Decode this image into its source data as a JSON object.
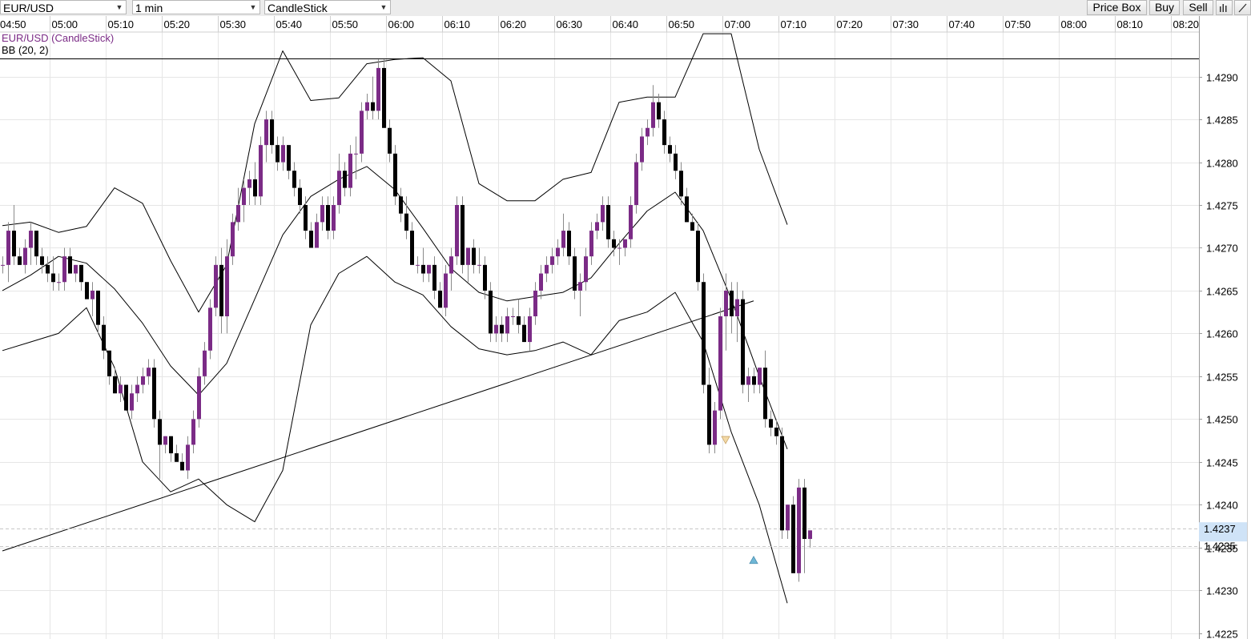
{
  "toolbar": {
    "symbol": "EUR/USD",
    "timeframe": "1 min",
    "chart_type": "CandleStick",
    "price_box_label": "Price Box",
    "buy_label": "Buy",
    "sell_label": "Sell"
  },
  "chart_data": {
    "type": "candlestick",
    "legend": [
      "EUR/USD (CandleStick)",
      "BB (20, 2)"
    ],
    "x_tick_labels": [
      "04:50",
      "05:00",
      "05:10",
      "05:20",
      "05:30",
      "05:40",
      "05:50",
      "06:00",
      "06:10",
      "06:20",
      "06:30",
      "06:40",
      "06:50",
      "07:00",
      "07:10",
      "07:20",
      "07:30",
      "07:40",
      "07:50",
      "08:00",
      "08:10",
      "08:20"
    ],
    "y_tick_labels": [
      "1.4290",
      "1.4285",
      "1.4280",
      "1.4275",
      "1.4270",
      "1.4265",
      "1.4260",
      "1.4255",
      "1.4250",
      "1.4245",
      "1.4240",
      "1.4235",
      "1.4230",
      "1.4225"
    ],
    "y_ticks": [
      1.429,
      1.4285,
      1.428,
      1.4275,
      1.427,
      1.4265,
      1.426,
      1.4255,
      1.425,
      1.4245,
      1.424,
      1.4235,
      1.423,
      1.4225
    ],
    "x_range": [
      "04:50",
      "08:21"
    ],
    "y_range": [
      1.42245,
      1.42952
    ],
    "grid": true,
    "price_labels": [
      "1.4237",
      "1.4235"
    ],
    "price_label_values": [
      1.42372,
      1.42352
    ],
    "horizontal_line": 1.42921,
    "trendline": [
      {
        "time": "04:50",
        "price": 1.42346
      },
      {
        "time": "07:04",
        "price": 1.42638
      }
    ],
    "candle_interval": "1 min",
    "start_time": "04:50",
    "up_color": "#7b2b86",
    "down_color": "#000000",
    "candles": [
      [
        1.4268,
        1.4269,
        1.4267,
        1.4268
      ],
      [
        1.4268,
        1.4273,
        1.4266,
        1.4272
      ],
      [
        1.4272,
        1.4275,
        1.4268,
        1.4269
      ],
      [
        1.4269,
        1.427,
        1.4268,
        1.4268
      ],
      [
        1.4268,
        1.4271,
        1.4267,
        1.427
      ],
      [
        1.427,
        1.4273,
        1.4268,
        1.4272
      ],
      [
        1.4272,
        1.4272,
        1.4268,
        1.4269
      ],
      [
        1.4269,
        1.427,
        1.4267,
        1.4268
      ],
      [
        1.4268,
        1.4269,
        1.4266,
        1.4267
      ],
      [
        1.4267,
        1.4269,
        1.4265,
        1.4266
      ],
      [
        1.4266,
        1.4267,
        1.4265,
        1.4266
      ],
      [
        1.4266,
        1.427,
        1.4265,
        1.4269
      ],
      [
        1.4269,
        1.427,
        1.4267,
        1.4267
      ],
      [
        1.4267,
        1.4268,
        1.4266,
        1.4268
      ],
      [
        1.4268,
        1.4268,
        1.4265,
        1.4266
      ],
      [
        1.4266,
        1.4266,
        1.4264,
        1.4264
      ],
      [
        1.4264,
        1.4266,
        1.4262,
        1.4265
      ],
      [
        1.4265,
        1.4265,
        1.426,
        1.4261
      ],
      [
        1.4261,
        1.4262,
        1.4257,
        1.4258
      ],
      [
        1.4258,
        1.4258,
        1.4254,
        1.4255
      ],
      [
        1.4255,
        1.4256,
        1.4253,
        1.4253
      ],
      [
        1.4253,
        1.4255,
        1.4252,
        1.4254
      ],
      [
        1.4254,
        1.4254,
        1.4251,
        1.4251
      ],
      [
        1.4251,
        1.4254,
        1.425,
        1.4253
      ],
      [
        1.4253,
        1.4255,
        1.4252,
        1.4254
      ],
      [
        1.4254,
        1.4256,
        1.4253,
        1.4255
      ],
      [
        1.4255,
        1.4257,
        1.4254,
        1.4256
      ],
      [
        1.4256,
        1.4257,
        1.4249,
        1.425
      ],
      [
        1.425,
        1.4251,
        1.4243,
        1.4247
      ],
      [
        1.4247,
        1.4248,
        1.4246,
        1.4248
      ],
      [
        1.4248,
        1.4248,
        1.4245,
        1.4246
      ],
      [
        1.4246,
        1.4247,
        1.4245,
        1.4245
      ],
      [
        1.4245,
        1.4246,
        1.4244,
        1.4244
      ],
      [
        1.4244,
        1.4248,
        1.4243,
        1.4247
      ],
      [
        1.4247,
        1.4251,
        1.4246,
        1.425
      ],
      [
        1.425,
        1.4256,
        1.4249,
        1.4255
      ],
      [
        1.4255,
        1.4259,
        1.4254,
        1.4258
      ],
      [
        1.4258,
        1.4264,
        1.4257,
        1.4263
      ],
      [
        1.4263,
        1.4269,
        1.4262,
        1.4268
      ],
      [
        1.4268,
        1.427,
        1.426,
        1.4262
      ],
      [
        1.4262,
        1.4271,
        1.426,
        1.4269
      ],
      [
        1.4269,
        1.4274,
        1.4268,
        1.4273
      ],
      [
        1.4273,
        1.4277,
        1.4272,
        1.4275
      ],
      [
        1.4275,
        1.4278,
        1.4273,
        1.4277
      ],
      [
        1.4277,
        1.4279,
        1.4275,
        1.4278
      ],
      [
        1.4278,
        1.428,
        1.4275,
        1.4276
      ],
      [
        1.4276,
        1.4283,
        1.4275,
        1.4282
      ],
      [
        1.4282,
        1.4286,
        1.428,
        1.4285
      ],
      [
        1.4285,
        1.4286,
        1.4281,
        1.4282
      ],
      [
        1.4282,
        1.4283,
        1.4279,
        1.428
      ],
      [
        1.428,
        1.4283,
        1.4279,
        1.4282
      ],
      [
        1.4282,
        1.4282,
        1.4278,
        1.4279
      ],
      [
        1.4279,
        1.428,
        1.4276,
        1.4277
      ],
      [
        1.4277,
        1.4278,
        1.4274,
        1.4275
      ],
      [
        1.4275,
        1.4276,
        1.4271,
        1.4272
      ],
      [
        1.4272,
        1.4273,
        1.427,
        1.427
      ],
      [
        1.427,
        1.4274,
        1.427,
        1.4273
      ],
      [
        1.4273,
        1.4276,
        1.4272,
        1.4275
      ],
      [
        1.4275,
        1.4276,
        1.4271,
        1.4272
      ],
      [
        1.4272,
        1.4276,
        1.4271,
        1.4275
      ],
      [
        1.4275,
        1.4281,
        1.4274,
        1.4279
      ],
      [
        1.4279,
        1.428,
        1.4276,
        1.4277
      ],
      [
        1.4277,
        1.4282,
        1.4276,
        1.4281
      ],
      [
        1.4281,
        1.4283,
        1.4278,
        1.4281
      ],
      [
        1.4281,
        1.4287,
        1.428,
        1.4286
      ],
      [
        1.4286,
        1.4288,
        1.4285,
        1.4287
      ],
      [
        1.4287,
        1.429,
        1.4285,
        1.4286
      ],
      [
        1.4286,
        1.4292,
        1.4285,
        1.4291
      ],
      [
        1.4291,
        1.4292,
        1.4284,
        1.4284
      ],
      [
        1.4284,
        1.4285,
        1.428,
        1.4281
      ],
      [
        1.4281,
        1.4282,
        1.4275,
        1.4276
      ],
      [
        1.4276,
        1.4277,
        1.4273,
        1.4274
      ],
      [
        1.4274,
        1.4276,
        1.4271,
        1.4272
      ],
      [
        1.4272,
        1.4273,
        1.4268,
        1.4268
      ],
      [
        1.4268,
        1.4269,
        1.4267,
        1.4268
      ],
      [
        1.4268,
        1.427,
        1.4266,
        1.4267
      ],
      [
        1.4267,
        1.4268,
        1.4266,
        1.4268
      ],
      [
        1.4268,
        1.4269,
        1.4264,
        1.4265
      ],
      [
        1.4265,
        1.4266,
        1.4263,
        1.4263
      ],
      [
        1.4263,
        1.4268,
        1.4262,
        1.4267
      ],
      [
        1.4267,
        1.427,
        1.4265,
        1.4269
      ],
      [
        1.4269,
        1.4276,
        1.4268,
        1.4275
      ],
      [
        1.4275,
        1.4276,
        1.4267,
        1.4268
      ],
      [
        1.4268,
        1.427,
        1.4266,
        1.427
      ],
      [
        1.427,
        1.4271,
        1.4267,
        1.4268
      ],
      [
        1.4268,
        1.427,
        1.4267,
        1.4268
      ],
      [
        1.4268,
        1.4269,
        1.4264,
        1.4265
      ],
      [
        1.4265,
        1.4266,
        1.4259,
        1.426
      ],
      [
        1.426,
        1.4262,
        1.4259,
        1.4261
      ],
      [
        1.4261,
        1.4262,
        1.4259,
        1.426
      ],
      [
        1.426,
        1.4263,
        1.4259,
        1.4262
      ],
      [
        1.4262,
        1.4263,
        1.4261,
        1.4262
      ],
      [
        1.4262,
        1.4264,
        1.426,
        1.4261
      ],
      [
        1.4261,
        1.4262,
        1.4259,
        1.4259
      ],
      [
        1.4259,
        1.4263,
        1.4258,
        1.4262
      ],
      [
        1.4262,
        1.4266,
        1.4261,
        1.4265
      ],
      [
        1.4265,
        1.4268,
        1.4264,
        1.4267
      ],
      [
        1.4267,
        1.4269,
        1.4266,
        1.4268
      ],
      [
        1.4268,
        1.427,
        1.4267,
        1.4269
      ],
      [
        1.4269,
        1.4271,
        1.4268,
        1.427
      ],
      [
        1.427,
        1.4274,
        1.4269,
        1.4272
      ],
      [
        1.4272,
        1.4273,
        1.4268,
        1.4269
      ],
      [
        1.4269,
        1.427,
        1.4264,
        1.4265
      ],
      [
        1.4265,
        1.4267,
        1.4262,
        1.4266
      ],
      [
        1.4266,
        1.427,
        1.4265,
        1.4269
      ],
      [
        1.4269,
        1.4273,
        1.4268,
        1.4272
      ],
      [
        1.4272,
        1.4274,
        1.4271,
        1.4273
      ],
      [
        1.4273,
        1.4276,
        1.4272,
        1.4275
      ],
      [
        1.4275,
        1.4276,
        1.427,
        1.4271
      ],
      [
        1.4271,
        1.4272,
        1.4269,
        1.427
      ],
      [
        1.427,
        1.4271,
        1.4268,
        1.427
      ],
      [
        1.427,
        1.4271,
        1.4269,
        1.4271
      ],
      [
        1.4271,
        1.4276,
        1.427,
        1.4275
      ],
      [
        1.4275,
        1.4281,
        1.4274,
        1.428
      ],
      [
        1.428,
        1.4284,
        1.4279,
        1.4283
      ],
      [
        1.4283,
        1.4285,
        1.4282,
        1.4284
      ],
      [
        1.4284,
        1.4289,
        1.4283,
        1.4287
      ],
      [
        1.4287,
        1.4288,
        1.4284,
        1.4285
      ],
      [
        1.4285,
        1.4286,
        1.4281,
        1.4282
      ],
      [
        1.4282,
        1.4283,
        1.428,
        1.4281
      ],
      [
        1.4281,
        1.4282,
        1.4278,
        1.4279
      ],
      [
        1.4279,
        1.428,
        1.4275,
        1.4276
      ],
      [
        1.4276,
        1.4277,
        1.4273,
        1.4273
      ],
      [
        1.4273,
        1.4274,
        1.4272,
        1.4272
      ],
      [
        1.4272,
        1.4273,
        1.4265,
        1.4266
      ],
      [
        1.4266,
        1.4267,
        1.4253,
        1.4254
      ],
      [
        1.4254,
        1.4256,
        1.4246,
        1.4247
      ],
      [
        1.4247,
        1.4252,
        1.4246,
        1.4251
      ],
      [
        1.4251,
        1.4263,
        1.425,
        1.4262
      ],
      [
        1.4262,
        1.4267,
        1.4258,
        1.4265
      ],
      [
        1.4265,
        1.4266,
        1.426,
        1.4262
      ],
      [
        1.4262,
        1.4266,
        1.4259,
        1.4264
      ],
      [
        1.4264,
        1.4265,
        1.4253,
        1.4254
      ],
      [
        1.4254,
        1.4256,
        1.4252,
        1.4255
      ],
      [
        1.4255,
        1.4256,
        1.4253,
        1.4254
      ],
      [
        1.4254,
        1.4256,
        1.4253,
        1.4256
      ],
      [
        1.4256,
        1.4258,
        1.4249,
        1.425
      ],
      [
        1.425,
        1.4251,
        1.4248,
        1.4249
      ],
      [
        1.4249,
        1.425,
        1.4247,
        1.4248
      ],
      [
        1.4248,
        1.4249,
        1.4236,
        1.4237
      ],
      [
        1.4237,
        1.424,
        1.4236,
        1.424
      ],
      [
        1.424,
        1.4241,
        1.4232,
        1.4232
      ],
      [
        1.4232,
        1.4243,
        1.4231,
        1.4242
      ],
      [
        1.4242,
        1.4243,
        1.4232,
        1.4236
      ],
      [
        1.4236,
        1.4237,
        1.4235,
        1.4237
      ]
    ],
    "bollinger": {
      "period": 20,
      "stddev": 2,
      "middle": [
        [
          "04:50",
          1.4265
        ],
        [
          "04:55",
          1.42668
        ],
        [
          "05:00",
          1.4269
        ],
        [
          "05:05",
          1.42682
        ],
        [
          "05:10",
          1.42652
        ],
        [
          "05:15",
          1.42612
        ],
        [
          "05:20",
          1.42562
        ],
        [
          "05:25",
          1.42528
        ],
        [
          "05:30",
          1.42565
        ],
        [
          "05:35",
          1.4264
        ],
        [
          "05:40",
          1.42715
        ],
        [
          "05:45",
          1.4276
        ],
        [
          "05:50",
          1.4278
        ],
        [
          "05:55",
          1.42795
        ],
        [
          "06:00",
          1.42768
        ],
        [
          "06:05",
          1.42723
        ],
        [
          "06:10",
          1.42676
        ],
        [
          "06:15",
          1.42648
        ],
        [
          "06:20",
          1.42638
        ],
        [
          "06:25",
          1.42643
        ],
        [
          "06:30",
          1.42648
        ],
        [
          "06:35",
          1.42665
        ],
        [
          "06:40",
          1.42705
        ],
        [
          "06:45",
          1.42743
        ],
        [
          "06:50",
          1.42765
        ],
        [
          "06:55",
          1.4272
        ],
        [
          "07:00",
          1.4264
        ],
        [
          "07:05",
          1.4255
        ],
        [
          "07:10",
          1.42465
        ]
      ],
      "upper": [
        [
          "04:50",
          1.42726
        ],
        [
          "04:55",
          1.4273
        ],
        [
          "05:00",
          1.42718
        ],
        [
          "05:05",
          1.42725
        ],
        [
          "05:10",
          1.4277
        ],
        [
          "05:15",
          1.42752
        ],
        [
          "05:20",
          1.42685
        ],
        [
          "05:25",
          1.42625
        ],
        [
          "05:30",
          1.4268
        ],
        [
          "05:35",
          1.42845
        ],
        [
          "05:40",
          1.4293
        ],
        [
          "05:45",
          1.42872
        ],
        [
          "05:50",
          1.42875
        ],
        [
          "05:55",
          1.42915
        ],
        [
          "06:00",
          1.4292
        ],
        [
          "06:05",
          1.42922
        ],
        [
          "06:10",
          1.42895
        ],
        [
          "06:15",
          1.42775
        ],
        [
          "06:20",
          1.42755
        ],
        [
          "06:25",
          1.42755
        ],
        [
          "06:30",
          1.4278
        ],
        [
          "06:35",
          1.42788
        ],
        [
          "06:40",
          1.4287
        ],
        [
          "06:45",
          1.42876
        ],
        [
          "06:50",
          1.42876
        ],
        [
          "06:55",
          1.4295
        ],
        [
          "07:00",
          1.4295
        ],
        [
          "07:05",
          1.42815
        ],
        [
          "07:10",
          1.42727
        ]
      ],
      "lower": [
        [
          "04:50",
          1.4258
        ],
        [
          "04:55",
          1.4259
        ],
        [
          "05:00",
          1.426
        ],
        [
          "05:05",
          1.4263
        ],
        [
          "05:10",
          1.4256
        ],
        [
          "05:15",
          1.4245
        ],
        [
          "05:20",
          1.42415
        ],
        [
          "05:25",
          1.4243
        ],
        [
          "05:30",
          1.424
        ],
        [
          "05:35",
          1.4238
        ],
        [
          "05:40",
          1.4244
        ],
        [
          "05:45",
          1.4261
        ],
        [
          "05:50",
          1.4267
        ],
        [
          "05:55",
          1.4269
        ],
        [
          "06:00",
          1.4266
        ],
        [
          "06:05",
          1.42645
        ],
        [
          "06:10",
          1.42608
        ],
        [
          "06:15",
          1.42582
        ],
        [
          "06:20",
          1.42575
        ],
        [
          "06:25",
          1.4258
        ],
        [
          "06:30",
          1.4259
        ],
        [
          "06:35",
          1.42575
        ],
        [
          "06:40",
          1.42615
        ],
        [
          "06:45",
          1.42625
        ],
        [
          "06:50",
          1.42648
        ],
        [
          "06:55",
          1.4259
        ],
        [
          "07:00",
          1.42485
        ],
        [
          "07:05",
          1.424
        ],
        [
          "07:10",
          1.42285
        ]
      ]
    },
    "markers": [
      {
        "type": "sell",
        "time": "06:59",
        "price": 1.42475,
        "color": "#f2d9a6"
      },
      {
        "type": "buy",
        "time": "07:04",
        "price": 1.42335,
        "color": "#6fb7d6"
      }
    ]
  }
}
